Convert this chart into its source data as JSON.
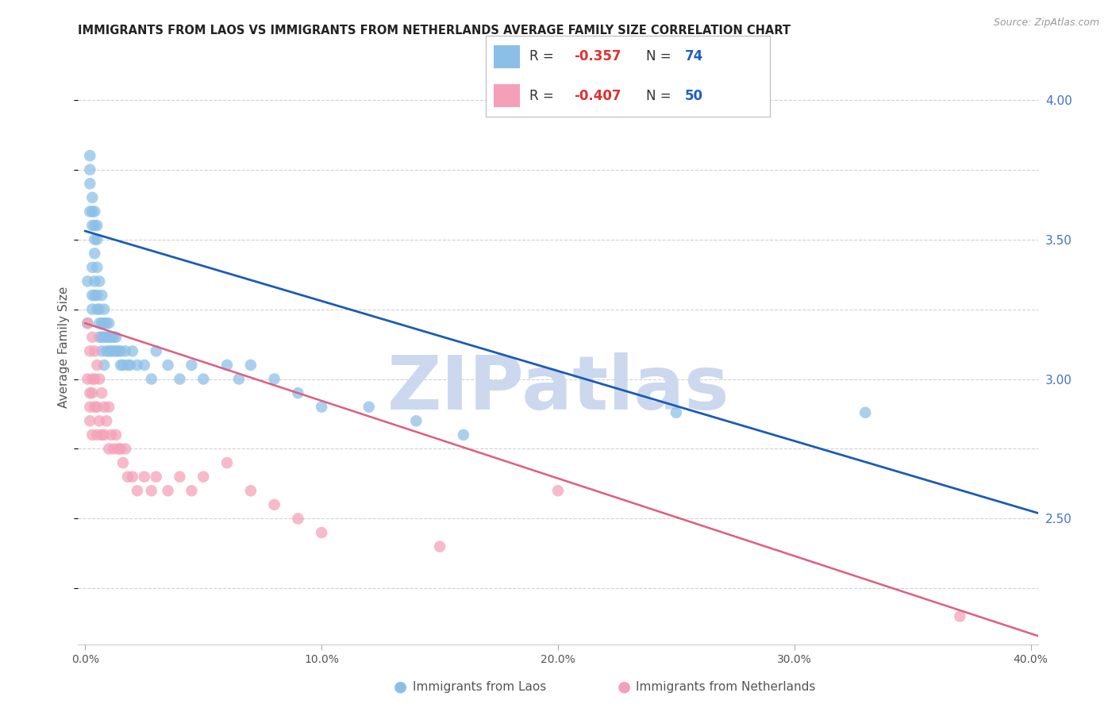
{
  "title": "IMMIGRANTS FROM LAOS VS IMMIGRANTS FROM NETHERLANDS AVERAGE FAMILY SIZE CORRELATION CHART",
  "source": "Source: ZipAtlas.com",
  "ylabel": "Average Family Size",
  "xlabel_ticks": [
    "0.0%",
    "",
    "",
    "",
    "",
    "10.0%",
    "",
    "",
    "",
    "",
    "20.0%",
    "",
    "",
    "",
    "",
    "30.0%",
    "",
    "",
    "",
    "",
    "40.0%"
  ],
  "xlabel_vals": [
    0.0,
    0.02,
    0.04,
    0.06,
    0.08,
    0.1,
    0.12,
    0.14,
    0.16,
    0.18,
    0.2,
    0.22,
    0.24,
    0.26,
    0.28,
    0.3,
    0.32,
    0.34,
    0.36,
    0.38,
    0.4
  ],
  "right_yticks": [
    2.5,
    3.0,
    3.5,
    4.0
  ],
  "xlim": [
    -0.003,
    0.403
  ],
  "ylim": [
    2.05,
    4.18
  ],
  "laos_R": -0.357,
  "laos_N": 74,
  "neth_R": -0.407,
  "neth_N": 50,
  "laos_color": "#8bbfe8",
  "neth_color": "#f4a0b8",
  "laos_line_color": "#1a5cb5",
  "neth_line_color": "#e05c80",
  "laos_line_x0": 0.0,
  "laos_line_x1": 0.403,
  "laos_line_y0": 3.53,
  "laos_line_y1": 2.52,
  "neth_line_x0": 0.0,
  "neth_line_x1": 0.403,
  "neth_line_y0": 3.2,
  "neth_line_y1": 2.08,
  "laos_x": [
    0.001,
    0.001,
    0.002,
    0.002,
    0.002,
    0.002,
    0.003,
    0.003,
    0.003,
    0.003,
    0.003,
    0.003,
    0.004,
    0.004,
    0.004,
    0.004,
    0.004,
    0.004,
    0.005,
    0.005,
    0.005,
    0.005,
    0.005,
    0.006,
    0.006,
    0.006,
    0.006,
    0.007,
    0.007,
    0.007,
    0.007,
    0.008,
    0.008,
    0.008,
    0.008,
    0.009,
    0.009,
    0.009,
    0.01,
    0.01,
    0.01,
    0.011,
    0.011,
    0.012,
    0.012,
    0.013,
    0.013,
    0.014,
    0.015,
    0.015,
    0.016,
    0.017,
    0.018,
    0.019,
    0.02,
    0.022,
    0.025,
    0.028,
    0.03,
    0.035,
    0.04,
    0.045,
    0.05,
    0.06,
    0.065,
    0.07,
    0.08,
    0.09,
    0.1,
    0.12,
    0.14,
    0.16,
    0.33,
    0.25
  ],
  "laos_y": [
    3.2,
    3.35,
    3.6,
    3.7,
    3.75,
    3.8,
    3.55,
    3.6,
    3.65,
    3.3,
    3.25,
    3.4,
    3.5,
    3.55,
    3.6,
    3.45,
    3.35,
    3.3,
    3.5,
    3.55,
    3.4,
    3.3,
    3.25,
    3.35,
    3.25,
    3.2,
    3.15,
    3.3,
    3.2,
    3.15,
    3.1,
    3.25,
    3.2,
    3.15,
    3.05,
    3.2,
    3.15,
    3.1,
    3.2,
    3.15,
    3.1,
    3.15,
    3.1,
    3.15,
    3.1,
    3.15,
    3.1,
    3.1,
    3.1,
    3.05,
    3.05,
    3.1,
    3.05,
    3.05,
    3.1,
    3.05,
    3.05,
    3.0,
    3.1,
    3.05,
    3.0,
    3.05,
    3.0,
    3.05,
    3.0,
    3.05,
    3.0,
    2.95,
    2.9,
    2.9,
    2.85,
    2.8,
    2.88,
    2.88
  ],
  "neth_x": [
    0.001,
    0.001,
    0.002,
    0.002,
    0.002,
    0.002,
    0.003,
    0.003,
    0.003,
    0.003,
    0.004,
    0.004,
    0.004,
    0.005,
    0.005,
    0.005,
    0.006,
    0.006,
    0.007,
    0.007,
    0.008,
    0.008,
    0.009,
    0.01,
    0.01,
    0.011,
    0.012,
    0.013,
    0.014,
    0.015,
    0.016,
    0.017,
    0.018,
    0.02,
    0.022,
    0.025,
    0.028,
    0.03,
    0.035,
    0.04,
    0.045,
    0.05,
    0.06,
    0.07,
    0.08,
    0.09,
    0.1,
    0.15,
    0.2,
    0.37
  ],
  "neth_y": [
    3.2,
    3.0,
    3.1,
    2.95,
    2.9,
    2.85,
    3.15,
    3.0,
    2.95,
    2.8,
    3.1,
    3.0,
    2.9,
    3.05,
    2.9,
    2.8,
    3.0,
    2.85,
    2.95,
    2.8,
    2.9,
    2.8,
    2.85,
    2.9,
    2.75,
    2.8,
    2.75,
    2.8,
    2.75,
    2.75,
    2.7,
    2.75,
    2.65,
    2.65,
    2.6,
    2.65,
    2.6,
    2.65,
    2.6,
    2.65,
    2.6,
    2.65,
    2.7,
    2.6,
    2.55,
    2.5,
    2.45,
    2.4,
    2.6,
    2.15
  ],
  "background_color": "#ffffff",
  "grid_color": "#cccccc",
  "title_fontsize": 10.5,
  "source_fontsize": 9,
  "label_fontsize": 11,
  "tick_fontsize": 10,
  "watermark_text": "ZIPatlas",
  "watermark_color": "#ccd8ee",
  "watermark_fontsize": 68
}
